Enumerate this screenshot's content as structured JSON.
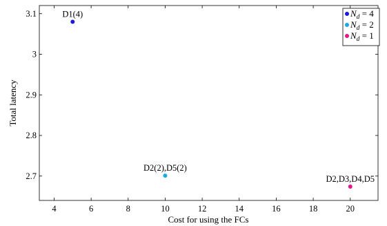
{
  "chart_data": {
    "type": "scatter",
    "title": "",
    "xlabel": "Cost for using the FCs",
    "ylabel": "Total latency",
    "xlim": [
      3.2,
      21.5
    ],
    "ylim": [
      2.64,
      3.12
    ],
    "xticks": [
      4,
      6,
      8,
      10,
      12,
      14,
      16,
      18,
      20
    ],
    "yticks": [
      2.7,
      2.8,
      2.9,
      3,
      3.1
    ],
    "xtick_labels": [
      "4",
      "6",
      "8",
      "10",
      "12",
      "14",
      "16",
      "18",
      "20"
    ],
    "ytick_labels": [
      "2.7",
      "2.8",
      "2.9",
      "3",
      "3.1"
    ],
    "grid": false,
    "legend_position": "top-right",
    "series": [
      {
        "name_prefix": "N",
        "name_subscript": "d",
        "name_suffix": " = 4",
        "color": "#1a1ad9",
        "points": [
          {
            "x": 5,
            "y": 3.08,
            "label": "D1(4)"
          }
        ]
      },
      {
        "name_prefix": "N",
        "name_subscript": "d",
        "name_suffix": " = 2",
        "color": "#1aa9e0",
        "points": [
          {
            "x": 10,
            "y": 2.701,
            "label": "D2(2),D5(2)"
          }
        ]
      },
      {
        "name_prefix": "N",
        "name_subscript": "d",
        "name_suffix": " = 1",
        "color": "#e01a8c",
        "points": [
          {
            "x": 20,
            "y": 2.674,
            "label": "D2,D3,D4,D5"
          }
        ]
      }
    ]
  }
}
